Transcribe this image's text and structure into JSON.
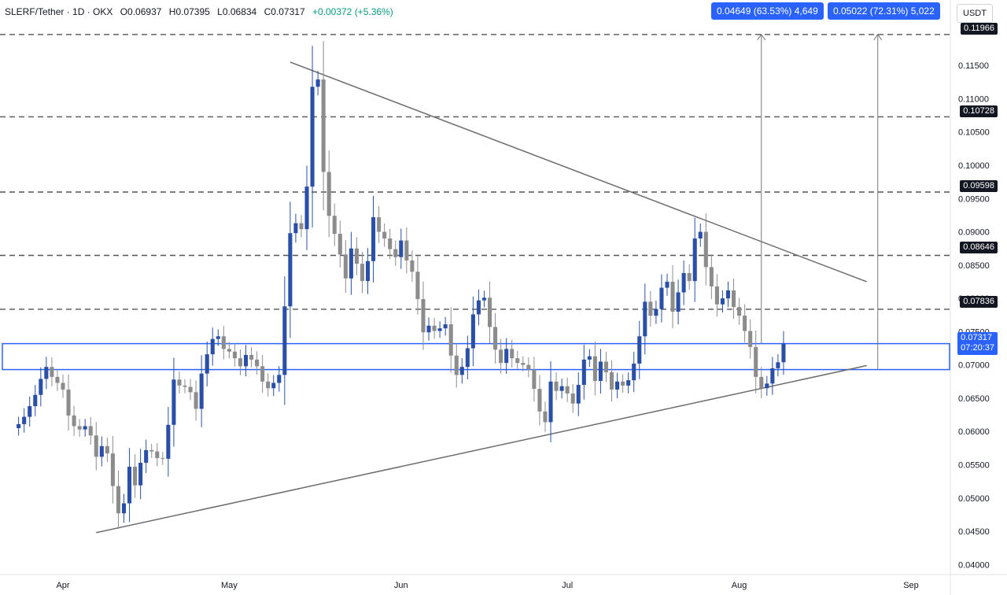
{
  "header": {
    "symbol": "SLERF/Tether · 1D · OKX",
    "open": "O0.06937",
    "high": "H0.07395",
    "low": "L0.06834",
    "close": "C0.07317",
    "change": "+0.00372 (+5.36%)"
  },
  "measure_badges": [
    "0.04649 (63.53%) 4,649",
    "0.05022 (72.31%) 5,022"
  ],
  "price_axis_unit": "USDT",
  "last_price": {
    "value": "0.07317",
    "countdown": "07:20:37"
  },
  "level_tags": [
    "0.11966",
    "0.10728",
    "0.09598",
    "0.08646",
    "0.07836"
  ],
  "colors": {
    "up": "#2a4fa8",
    "down": "#8c8c8c",
    "accent": "#2962ff",
    "dashed": "#555555",
    "trendline": "#6b6b6b"
  },
  "chart_data": {
    "type": "candlestick",
    "ylim": [
      0.0385,
      0.122
    ],
    "y_ticks": [
      "0.11500",
      "0.11000",
      "0.10500",
      "0.10000",
      "0.09500",
      "0.09000",
      "0.08500",
      "0.08000",
      "0.07500",
      "0.07000",
      "0.06500",
      "0.06000",
      "0.05500",
      "0.05000",
      "0.04500",
      "0.04000"
    ],
    "x_ticks": [
      {
        "label": "Apr",
        "date": "2024-04-01"
      },
      {
        "label": "May",
        "date": "2024-05-01"
      },
      {
        "label": "Jun",
        "date": "2024-06-01"
      },
      {
        "label": "Jul",
        "date": "2024-07-01"
      },
      {
        "label": "Aug",
        "date": "2024-08-01"
      },
      {
        "label": "Sep",
        "date": "2024-09-01"
      }
    ],
    "horizontal_levels": [
      0.11966,
      0.10728,
      0.09598,
      0.08646,
      0.07836
    ],
    "support_zone": [
      0.0693,
      0.0732
    ],
    "trendlines": [
      {
        "from": {
          "date": "2024-05-12",
          "price": 0.1155
        },
        "to": {
          "date": "2024-08-24",
          "price": 0.0825
        }
      },
      {
        "from": {
          "date": "2024-04-07",
          "price": 0.0448
        },
        "to": {
          "date": "2024-08-24",
          "price": 0.0699
        }
      }
    ],
    "projections": [
      {
        "date": "2024-08-05",
        "from": 0.0732,
        "to": 0.11966
      },
      {
        "date": "2024-08-26",
        "from": 0.0693,
        "to": 0.11966
      }
    ],
    "closes": [
      0.0611,
      0.0622,
      0.0638,
      0.0655,
      0.0679,
      0.0697,
      0.0682,
      0.0673,
      0.0663,
      0.0624,
      0.0608,
      0.0603,
      0.0608,
      0.0594,
      0.0562,
      0.0578,
      0.0567,
      0.0518,
      0.0477,
      0.0492,
      0.0547,
      0.0519,
      0.0553,
      0.0572,
      0.057,
      0.056,
      0.0559,
      0.061,
      0.0678,
      0.0669,
      0.0667,
      0.0659,
      0.0634,
      0.0687,
      0.0716,
      0.0739,
      0.0743,
      0.0724,
      0.072,
      0.071,
      0.0698,
      0.0715,
      0.0708,
      0.0698,
      0.0675,
      0.0665,
      0.0673,
      0.0685,
      0.0788,
      0.0898,
      0.0913,
      0.0904,
      0.0968,
      0.1118,
      0.1129,
      0.099,
      0.0924,
      0.0897,
      0.0866,
      0.083,
      0.0875,
      0.0852,
      0.0826,
      0.0856,
      0.0922,
      0.09,
      0.089,
      0.0874,
      0.0862,
      0.0887,
      0.0857,
      0.084,
      0.0799,
      0.0749,
      0.0759,
      0.0751,
      0.0755,
      0.0761,
      0.0714,
      0.0685,
      0.0697,
      0.0725,
      0.0776,
      0.0797,
      0.0801,
      0.0757,
      0.0723,
      0.0703,
      0.0724,
      0.071,
      0.0703,
      0.07,
      0.0693,
      0.0664,
      0.063,
      0.0614,
      0.0675,
      0.0661,
      0.0668,
      0.0657,
      0.0642,
      0.067,
      0.0708,
      0.0713,
      0.0676,
      0.0705,
      0.0689,
      0.0663,
      0.0675,
      0.0669,
      0.0677,
      0.0702,
      0.0743,
      0.0795,
      0.0774,
      0.0784,
      0.0816,
      0.0825,
      0.078,
      0.0809,
      0.0838,
      0.0826,
      0.089,
      0.09,
      0.0847,
      0.0818,
      0.0791,
      0.08,
      0.0812,
      0.0787,
      0.0774,
      0.0751,
      0.0727,
      0.0682,
      0.0665,
      0.0672,
      0.0695,
      0.0704,
      0.0732
    ]
  }
}
